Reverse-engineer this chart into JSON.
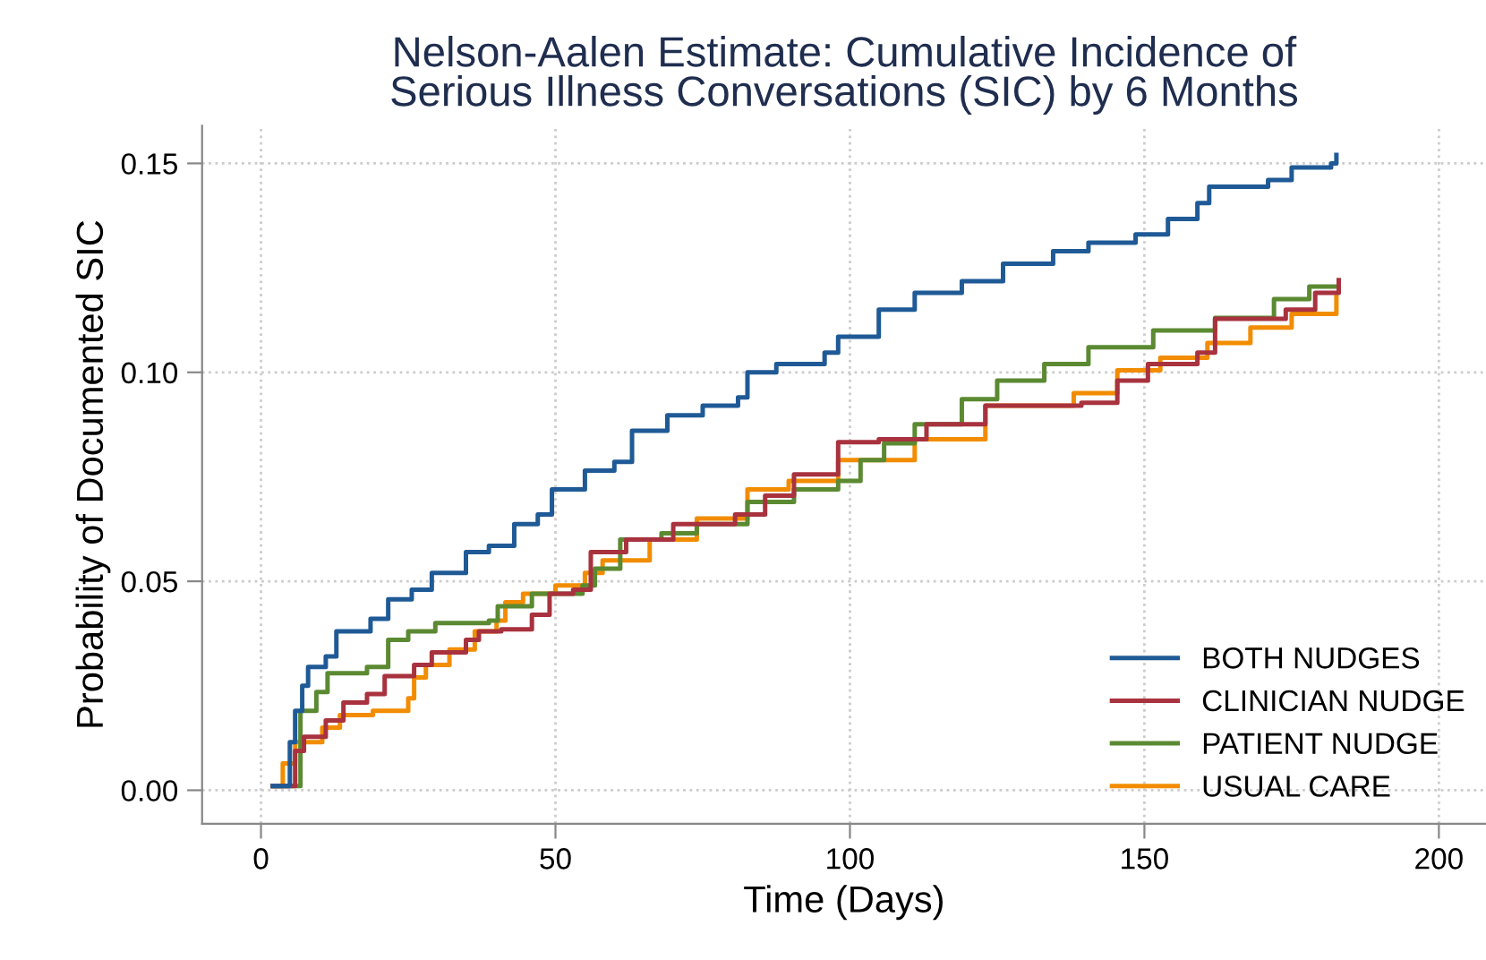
{
  "chart_data": {
    "type": "step",
    "title": "Nelson-Aalen Estimate: Cumulative Incidence of\nSerious Illness Conversations (SIC) by 6 Months",
    "xlabel": "Time (Days)",
    "ylabel": "Probability of Documented SIC",
    "xlim": [
      -10,
      208
    ],
    "xticks": [
      0,
      50,
      100,
      150,
      200
    ],
    "ylim": [
      -0.008,
      0.159
    ],
    "yticks": [
      {
        "value": 0,
        "label": "0.00"
      },
      {
        "value": 0.05,
        "label": "0.05"
      },
      {
        "value": 0.1,
        "label": "0.10"
      },
      {
        "value": 0.15,
        "label": "0.15"
      }
    ],
    "grid": true,
    "legend": "bottom right",
    "line_style": "solid",
    "marker": "none",
    "series": [
      {
        "name": "BOTH NUDGES",
        "color": "#1f5a96",
        "x": [
          2,
          4.9,
          5.8,
          7,
          8,
          11,
          12.8,
          18.6,
          21.6,
          25.6,
          29,
          34.8,
          38.7,
          43,
          47,
          49.4,
          55,
          60,
          63,
          69,
          75,
          81,
          82.6,
          87.5,
          95.7,
          98,
          104.9,
          111,
          119,
          126,
          134.5,
          140.5,
          148.5,
          154,
          159,
          161,
          171,
          175,
          181.7,
          182.6
        ],
        "values": [
          0.001,
          0.0115,
          0.019,
          0.025,
          0.0295,
          0.032,
          0.038,
          0.041,
          0.0457,
          0.048,
          0.052,
          0.057,
          0.0585,
          0.0637,
          0.066,
          0.072,
          0.0765,
          0.0786,
          0.086,
          0.0897,
          0.092,
          0.094,
          0.1,
          0.102,
          0.1047,
          0.1085,
          0.115,
          0.119,
          0.1218,
          0.126,
          0.129,
          0.131,
          0.133,
          0.1367,
          0.1405,
          0.1444,
          0.146,
          0.149,
          0.15,
          0.152
        ]
      },
      {
        "name": "CLINICIAN NUDGE",
        "color": "#a8323e",
        "x": [
          2,
          5.8,
          7.3,
          11,
          14,
          18,
          21,
          26,
          29,
          34.8,
          37,
          40.8,
          46,
          49,
          53,
          56,
          62,
          70,
          80.5,
          85.6,
          90.5,
          98,
          104.9,
          113,
          123,
          139.3,
          145.4,
          150.6,
          159,
          162,
          174,
          179,
          183
        ],
        "values": [
          0.001,
          0.0094,
          0.0128,
          0.0167,
          0.021,
          0.023,
          0.0273,
          0.03,
          0.033,
          0.036,
          0.038,
          0.0385,
          0.042,
          0.047,
          0.048,
          0.057,
          0.06,
          0.0637,
          0.066,
          0.0705,
          0.0756,
          0.0833,
          0.084,
          0.0876,
          0.092,
          0.0927,
          0.098,
          0.102,
          0.1047,
          0.1128,
          0.115,
          0.119,
          0.122
        ]
      },
      {
        "name": "PATIENT NUDGE",
        "color": "#5b8a32",
        "x": [
          2,
          6.7,
          9.4,
          11.3,
          18,
          21.6,
          25,
          29.6,
          38.7,
          40.2,
          46,
          54.6,
          56.7,
          61,
          68,
          74,
          82.6,
          90.5,
          98,
          101.8,
          105.8,
          111,
          119,
          125,
          133,
          140.5,
          151.5,
          162,
          172,
          178,
          183
        ],
        "values": [
          0.001,
          0.019,
          0.0235,
          0.028,
          0.0295,
          0.036,
          0.038,
          0.04,
          0.0406,
          0.044,
          0.047,
          0.049,
          0.053,
          0.06,
          0.0615,
          0.0637,
          0.069,
          0.072,
          0.074,
          0.079,
          0.083,
          0.0876,
          0.0936,
          0.098,
          0.102,
          0.106,
          0.11,
          0.113,
          0.1175,
          0.1205,
          0.122
        ]
      },
      {
        "name": "USUAL CARE",
        "color": "#f28c00",
        "x": [
          2,
          3.7,
          5.8,
          10.4,
          13.4,
          19,
          25,
          26,
          28,
          32,
          36.3,
          40,
          41.5,
          44.5,
          50,
          55,
          58,
          66,
          74,
          82.6,
          89.6,
          98,
          111,
          123,
          138,
          145.4,
          152.7,
          160.7,
          168,
          175,
          182.6
        ],
        "values": [
          0.001,
          0.0064,
          0.0115,
          0.015,
          0.018,
          0.019,
          0.022,
          0.027,
          0.03,
          0.0337,
          0.038,
          0.0406,
          0.045,
          0.047,
          0.049,
          0.052,
          0.055,
          0.06,
          0.065,
          0.072,
          0.074,
          0.079,
          0.084,
          0.092,
          0.095,
          0.1005,
          0.1035,
          0.107,
          0.1107,
          0.114,
          0.118
        ]
      }
    ]
  }
}
